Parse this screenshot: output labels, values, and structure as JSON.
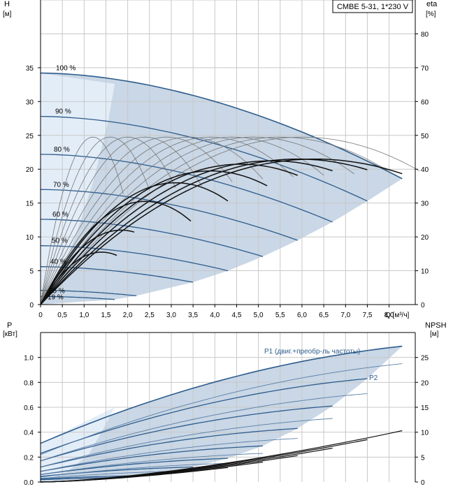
{
  "model_label": "CMBE 5-31, 1*230 V",
  "colors": {
    "area_fill": "#c9d7e6",
    "area_light": "#e3edf8",
    "blue_curve": "#2e5c8c",
    "eta_curve_thin": "#777777",
    "eta_curve_bold": "#111111",
    "grid": "#c8c8c8",
    "axis": "#000000",
    "text": "#000000",
    "blue_text": "#2e5c8c"
  },
  "chart_data": [
    {
      "type": "line",
      "title": "",
      "xlabel": "Q [м³/ч]",
      "ylabel_left": "H",
      "ylabel_left_unit": "[м]",
      "ylabel_right": "eta",
      "ylabel_right_unit": "[%]",
      "xlim": [
        0,
        8.6
      ],
      "ylim_left": [
        0,
        45
      ],
      "ylim_right": [
        0,
        90
      ],
      "x_ticks": [
        0,
        0.5,
        1.0,
        1.5,
        2.0,
        2.5,
        3.0,
        3.5,
        4.0,
        4.5,
        5.0,
        5.5,
        6.0,
        6.5,
        7.0,
        7.5,
        8.0
      ],
      "x_tick_labels": [
        "0",
        "0,5",
        "1,0",
        "1,5",
        "2,0",
        "2,5",
        "3,0",
        "3,5",
        "4,0",
        "4,5",
        "5,0",
        "5,5",
        "6,0",
        "6,5",
        "7,0",
        "7,5",
        "8,0"
      ],
      "y_left_ticks": [
        0,
        5,
        10,
        15,
        20,
        25,
        30,
        35
      ],
      "y_right_ticks": [
        0,
        10,
        20,
        30,
        40,
        50,
        60,
        70,
        80
      ],
      "grid": true,
      "speed_labels": [
        "100 %",
        "90 %",
        "80 %",
        "70 %",
        "60 %",
        "50 %",
        "40 %",
        "25 %",
        "19 %"
      ],
      "head_curves": [
        {
          "pct": 100,
          "h0": 34.2,
          "qmax": 8.3,
          "hmax": 18.6
        },
        {
          "pct": 90,
          "h0": 27.8,
          "qmax": 7.5,
          "hmax": 15.3
        },
        {
          "pct": 80,
          "h0": 22.2,
          "qmax": 6.7,
          "hmax": 12.2
        },
        {
          "pct": 70,
          "h0": 17.0,
          "qmax": 5.9,
          "hmax": 9.5
        },
        {
          "pct": 60,
          "h0": 12.6,
          "qmax": 5.1,
          "hmax": 7.1
        },
        {
          "pct": 50,
          "h0": 8.7,
          "qmax": 4.3,
          "hmax": 5.0
        },
        {
          "pct": 40,
          "h0": 5.6,
          "qmax": 3.5,
          "hmax": 3.3
        },
        {
          "pct": 25,
          "h0": 2.1,
          "qmax": 2.2,
          "hmax": 1.3
        },
        {
          "pct": 19,
          "h0": 1.2,
          "qmax": 1.7,
          "hmax": 0.75
        }
      ],
      "efficiency_curves_thin": [
        {
          "qpeak": 1.2,
          "etapeak": 49.5,
          "qend": 1.9
        },
        {
          "qpeak": 1.6,
          "etapeak": 49.5,
          "qend": 2.5
        },
        {
          "qpeak": 2.0,
          "etapeak": 49.5,
          "qend": 3.1
        },
        {
          "qpeak": 2.4,
          "etapeak": 49.5,
          "qend": 3.7
        },
        {
          "qpeak": 2.9,
          "etapeak": 49.5,
          "qend": 4.4
        },
        {
          "qpeak": 3.4,
          "etapeak": 49.5,
          "qend": 5.1
        },
        {
          "qpeak": 3.9,
          "etapeak": 49.5,
          "qend": 5.8
        },
        {
          "qpeak": 4.4,
          "etapeak": 49.5,
          "qend": 6.5
        },
        {
          "qpeak": 4.9,
          "etapeak": 49.5,
          "qend": 7.2
        },
        {
          "qpeak": 5.5,
          "etapeak": 49.5,
          "qend": 8.0
        },
        {
          "qpeak": 6.0,
          "etapeak": 49.5,
          "qend": 8.7
        }
      ],
      "efficiency_curves_bold": [
        {
          "qpeak": 1.4,
          "etapeak": 15.5,
          "qend": 1.75
        },
        {
          "qpeak": 1.85,
          "etapeak": 22.0,
          "qend": 2.15
        },
        {
          "qpeak": 2.4,
          "etapeak": 30.5,
          "qend": 3.45
        },
        {
          "qpeak": 3.1,
          "etapeak": 36.0,
          "qend": 4.3
        },
        {
          "qpeak": 3.9,
          "etapeak": 39.5,
          "qend": 5.2
        },
        {
          "qpeak": 4.6,
          "etapeak": 41.5,
          "qend": 5.9
        },
        {
          "qpeak": 5.3,
          "etapeak": 42.5,
          "qend": 6.7
        },
        {
          "qpeak": 5.9,
          "etapeak": 43.0,
          "qend": 7.5
        },
        {
          "qpeak": 6.3,
          "etapeak": 43.0,
          "qend": 8.3
        }
      ]
    },
    {
      "type": "line",
      "title": "",
      "ylabel_left": "P",
      "ylabel_left_unit": "[кВт]",
      "ylabel_right": "NPSH",
      "ylabel_right_unit": "[м]",
      "xlim": [
        0,
        8.6
      ],
      "ylim_left": [
        0,
        1.2
      ],
      "ylim_right": [
        0,
        30
      ],
      "y_left_ticks": [
        0.0,
        0.2,
        0.4,
        0.6,
        0.8,
        1.0
      ],
      "y_left_tick_labels": [
        "0.0",
        "0.2",
        "0.4",
        "0.6",
        "0.8",
        "1.0"
      ],
      "y_right_ticks": [
        0,
        5,
        10,
        15,
        20,
        25
      ],
      "grid": true,
      "series_labels": [
        "P1 (двиг.+преобр-ль частоты)",
        "P2"
      ],
      "p1_curves": [
        {
          "pct": 100,
          "p0": 0.31,
          "qmax": 8.3,
          "pmax": 1.09
        },
        {
          "pct": 90,
          "p0": 0.23,
          "qmax": 7.5,
          "pmax": 0.83
        },
        {
          "pct": 80,
          "p0": 0.17,
          "qmax": 6.7,
          "pmax": 0.61
        },
        {
          "pct": 70,
          "p0": 0.12,
          "qmax": 5.9,
          "pmax": 0.43
        },
        {
          "pct": 60,
          "p0": 0.085,
          "qmax": 5.1,
          "pmax": 0.29
        },
        {
          "pct": 50,
          "p0": 0.06,
          "qmax": 4.3,
          "pmax": 0.19
        },
        {
          "pct": 40,
          "p0": 0.045,
          "qmax": 3.5,
          "pmax": 0.12
        },
        {
          "pct": 25,
          "p0": 0.025,
          "qmax": 2.2,
          "pmax": 0.05
        },
        {
          "pct": 19,
          "p0": 0.018,
          "qmax": 1.7,
          "pmax": 0.035
        }
      ],
      "p2_curves": [
        {
          "pct": 100,
          "p0": 0.22,
          "qmax": 8.3,
          "pmax": 0.95
        },
        {
          "pct": 90,
          "p0": 0.17,
          "qmax": 7.5,
          "pmax": 0.71
        },
        {
          "pct": 80,
          "p0": 0.12,
          "qmax": 6.7,
          "pmax": 0.51
        },
        {
          "pct": 70,
          "p0": 0.085,
          "qmax": 5.9,
          "pmax": 0.35
        },
        {
          "pct": 60,
          "p0": 0.06,
          "qmax": 5.1,
          "pmax": 0.23
        },
        {
          "pct": 50,
          "p0": 0.04,
          "qmax": 4.3,
          "pmax": 0.15
        },
        {
          "pct": 40,
          "p0": 0.03,
          "qmax": 3.5,
          "pmax": 0.09
        }
      ],
      "npsh_curves": [
        {
          "qmax": 8.3,
          "nmax": 10.3
        },
        {
          "qmax": 7.5,
          "nmax": 8.5
        },
        {
          "qmax": 6.7,
          "nmax": 6.8
        },
        {
          "qmax": 5.9,
          "nmax": 5.3
        },
        {
          "qmax": 5.1,
          "nmax": 4.0
        },
        {
          "qmax": 4.3,
          "nmax": 2.9
        }
      ]
    }
  ]
}
